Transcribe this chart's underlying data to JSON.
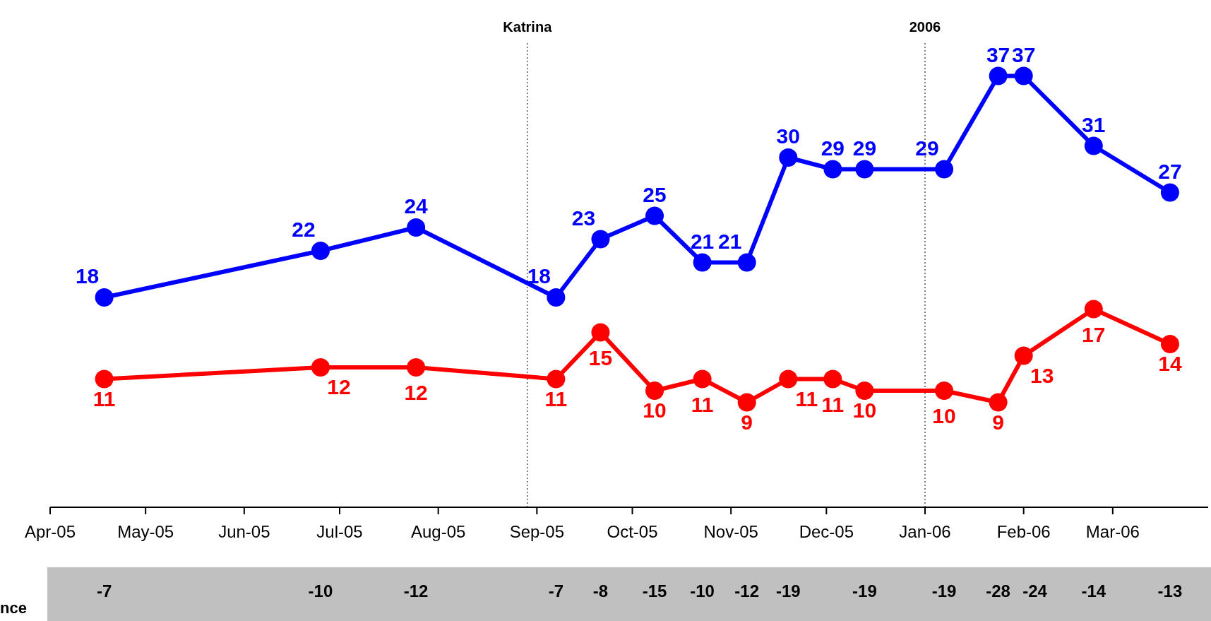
{
  "chart_data": {
    "type": "line",
    "x": [
      "2005-04-18",
      "2005-06-25",
      "2005-07-25",
      "2005-09-07",
      "2005-09-21",
      "2005-10-08",
      "2005-10-23",
      "2005-11-06",
      "2005-11-19",
      "2005-12-03",
      "2005-12-13",
      "2006-01-07",
      "2006-01-24",
      "2006-02-01",
      "2006-02-23",
      "2006-03-19"
    ],
    "series": [
      {
        "color": "#0000ff",
        "values": [
          18,
          22,
          24,
          18,
          23,
          25,
          21,
          21,
          30,
          29,
          29,
          29,
          37,
          37,
          31,
          27
        ]
      },
      {
        "color": "#ff0000",
        "values": [
          11,
          12,
          12,
          11,
          15,
          10,
          11,
          9,
          11,
          11,
          10,
          10,
          9,
          13,
          17,
          14
        ]
      }
    ],
    "xlim": [
      "2005-04-01",
      "2006-03-31"
    ],
    "xticks": [
      {
        "value": "2005-04-01",
        "label": "Apr-05"
      },
      {
        "value": "2005-05-01",
        "label": "May-05"
      },
      {
        "value": "2005-06-01",
        "label": "Jun-05"
      },
      {
        "value": "2005-07-01",
        "label": "Jul-05"
      },
      {
        "value": "2005-08-01",
        "label": "Aug-05"
      },
      {
        "value": "2005-09-01",
        "label": "Sep-05"
      },
      {
        "value": "2005-10-01",
        "label": "Oct-05"
      },
      {
        "value": "2005-11-01",
        "label": "Nov-05"
      },
      {
        "value": "2005-12-01",
        "label": "Dec-05"
      },
      {
        "value": "2006-01-01",
        "label": "Jan-06"
      },
      {
        "value": "2006-02-01",
        "label": "Feb-06"
      },
      {
        "value": "2006-03-01",
        "label": "Mar-06"
      }
    ],
    "ref_lines": [
      {
        "axis": "x",
        "value": "2005-08-29",
        "label": "Katrina",
        "color": "#000000",
        "line_style": "dotted"
      },
      {
        "axis": "x",
        "value": "2006-01-01",
        "label": "2006",
        "color": "#000000",
        "line_style": "dotted"
      }
    ],
    "data_labels": true,
    "marker": "circle",
    "grid": false,
    "legend": false,
    "tick_labels": "x",
    "annotations": [
      "nce",
      "-7",
      "-10",
      "-12",
      "-7",
      "-8",
      "-15",
      "-10",
      "-12",
      "-19",
      "-19",
      "-19",
      "-28",
      "-24",
      "-14",
      "-13"
    ]
  }
}
